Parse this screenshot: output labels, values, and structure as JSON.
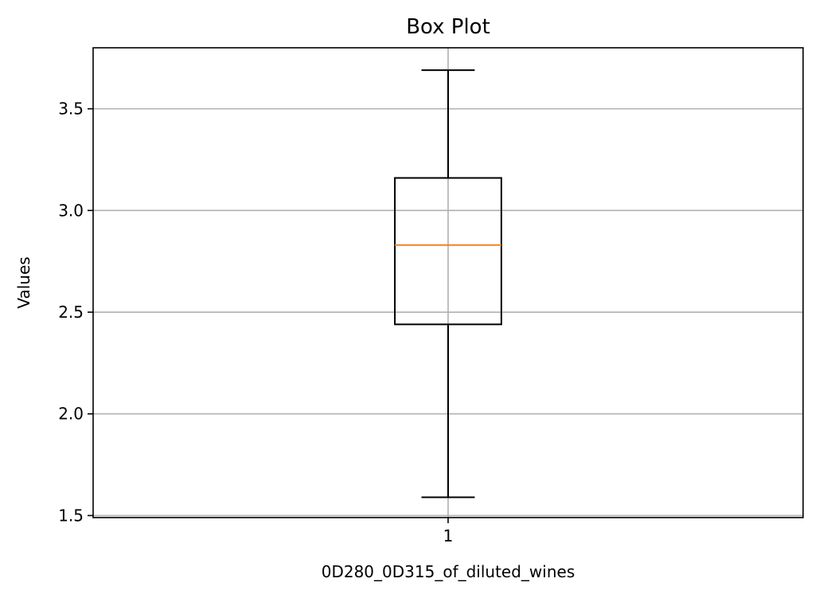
{
  "chart_data": {
    "type": "box",
    "title": "Box Plot",
    "xlabel": "0D280_0D315_of_diluted_wines",
    "ylabel": "Values",
    "categories": [
      "1"
    ],
    "ylim": [
      1.49,
      3.8
    ],
    "yticks": [
      1.5,
      2.0,
      2.5,
      3.0,
      3.5
    ],
    "ytick_labels": [
      "1.5",
      "2.0",
      "2.5",
      "3.0",
      "3.5"
    ],
    "grid": true,
    "boxes": [
      {
        "category": "1",
        "whisker_low": 1.59,
        "q1": 2.44,
        "median": 2.83,
        "q3": 3.16,
        "whisker_high": 3.69
      }
    ],
    "colors": {
      "box": "#000000",
      "median": "#ff7f0e",
      "grid": "#b0b0b0"
    }
  }
}
